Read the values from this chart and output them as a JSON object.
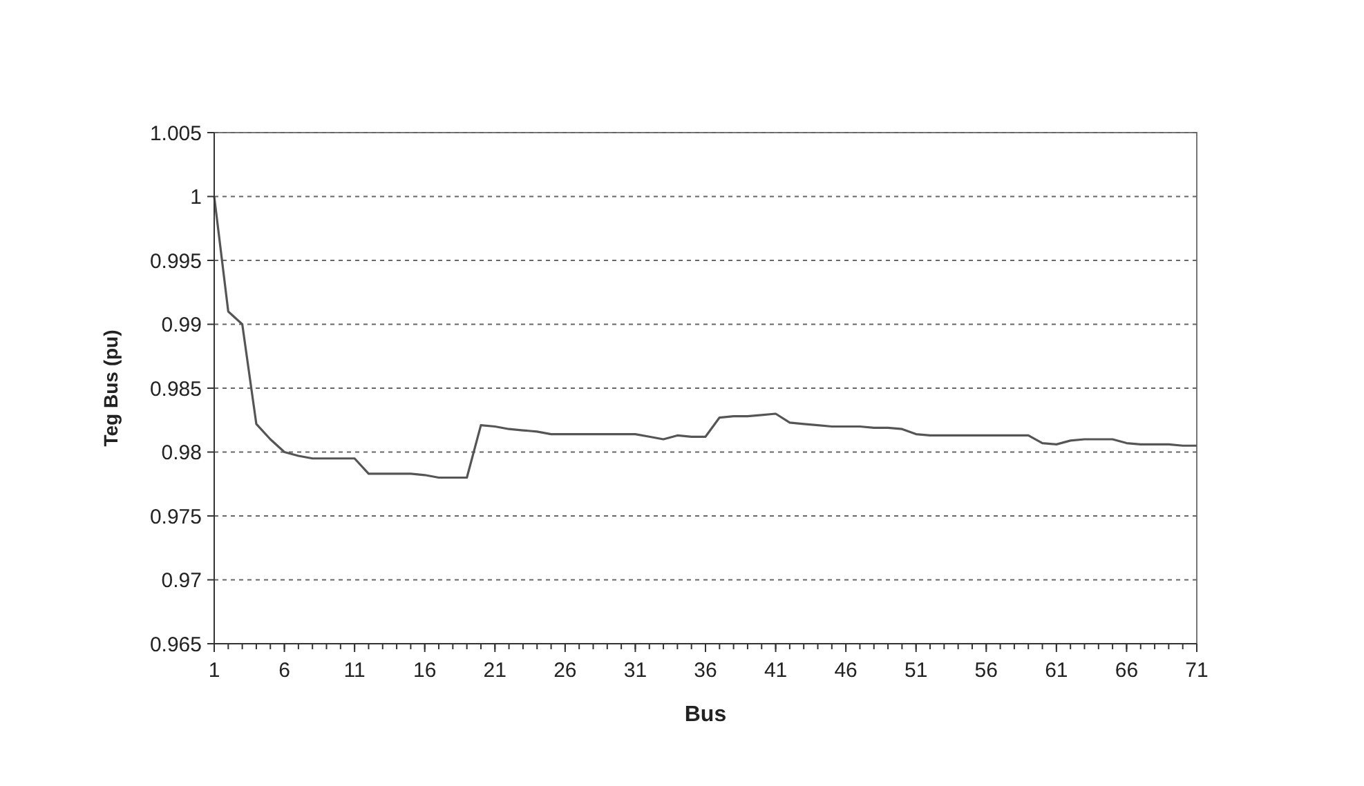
{
  "chart_data": {
    "type": "line",
    "xlabel": "Bus",
    "ylabel": "Teg Bus (pu)",
    "x": [
      1,
      2,
      3,
      4,
      5,
      6,
      7,
      8,
      9,
      10,
      11,
      12,
      13,
      14,
      15,
      16,
      17,
      18,
      19,
      20,
      21,
      22,
      23,
      24,
      25,
      26,
      27,
      28,
      29,
      30,
      31,
      32,
      33,
      34,
      35,
      36,
      37,
      38,
      39,
      40,
      41,
      42,
      43,
      44,
      45,
      46,
      47,
      48,
      49,
      50,
      51,
      52,
      53,
      54,
      55,
      56,
      57,
      58,
      59,
      60,
      61,
      62,
      63,
      64,
      65,
      66,
      67,
      68,
      69,
      70,
      71
    ],
    "series": [
      {
        "color": "#555555",
        "values": [
          1.0,
          0.991,
          0.99,
          0.9822,
          0.981,
          0.98,
          0.9797,
          0.9795,
          0.9795,
          0.9795,
          0.9795,
          0.9783,
          0.9783,
          0.9783,
          0.9783,
          0.9782,
          0.978,
          0.978,
          0.978,
          0.9821,
          0.982,
          0.9818,
          0.9817,
          0.9816,
          0.9814,
          0.9814,
          0.9814,
          0.9814,
          0.9814,
          0.9814,
          0.9814,
          0.9812,
          0.981,
          0.9813,
          0.9812,
          0.9812,
          0.9827,
          0.9828,
          0.9828,
          0.9829,
          0.983,
          0.9823,
          0.9822,
          0.9821,
          0.982,
          0.982,
          0.982,
          0.9819,
          0.9819,
          0.9818,
          0.9814,
          0.9813,
          0.9813,
          0.9813,
          0.9813,
          0.9813,
          0.9813,
          0.9813,
          0.9813,
          0.9807,
          0.9806,
          0.9809,
          0.981,
          0.981,
          0.981,
          0.9807,
          0.9806,
          0.9806,
          0.9806,
          0.9805,
          0.9805
        ]
      }
    ],
    "xlim": [
      1,
      71
    ],
    "xticks": [
      1,
      6,
      11,
      16,
      21,
      26,
      31,
      36,
      41,
      46,
      51,
      56,
      61,
      66,
      71
    ],
    "ylim": [
      0.965,
      1.005
    ],
    "yticks": [
      0.965,
      0.97,
      0.975,
      0.98,
      0.985,
      0.99,
      0.995,
      1,
      1.005
    ],
    "grid": "y",
    "marker": "none",
    "line_style": "solid"
  }
}
